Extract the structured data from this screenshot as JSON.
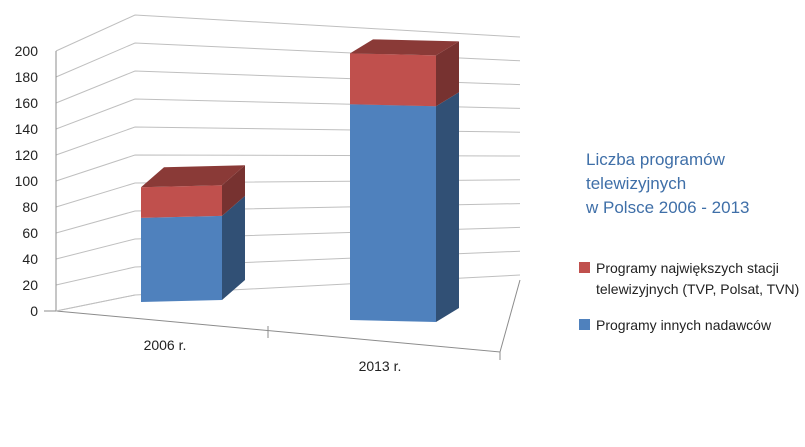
{
  "chart_data": {
    "type": "bar",
    "stacked": true,
    "three_d": true,
    "title": "Liczba programów telewizyjnych w Polsce 2006 - 2013",
    "title_lines": [
      "Liczba programów",
      "telewizyjnych",
      "w Polsce 2006 - 2013"
    ],
    "categories": [
      "2006 r.",
      "2013 r."
    ],
    "series": [
      {
        "name": "Programy innych nadawców",
        "values": [
          66,
          161
        ],
        "color": "#4f81bd"
      },
      {
        "name": "Programy największych stacji telewizyjnych (TVP, Polsat, TVN)",
        "values": [
          24,
          38
        ],
        "color": "#c0504d"
      }
    ],
    "legend_order": [
      1,
      0
    ],
    "legend_lines": [
      [
        "Programy największych stacji",
        "telewizyjnych (TVP, Polsat, TVN)"
      ],
      [
        "Programy innych nadawców"
      ]
    ],
    "ylim": [
      0,
      200
    ],
    "yticks": [
      0,
      20,
      40,
      60,
      80,
      100,
      120,
      140,
      160,
      180,
      200
    ],
    "grid": true,
    "legend_position": "right"
  }
}
